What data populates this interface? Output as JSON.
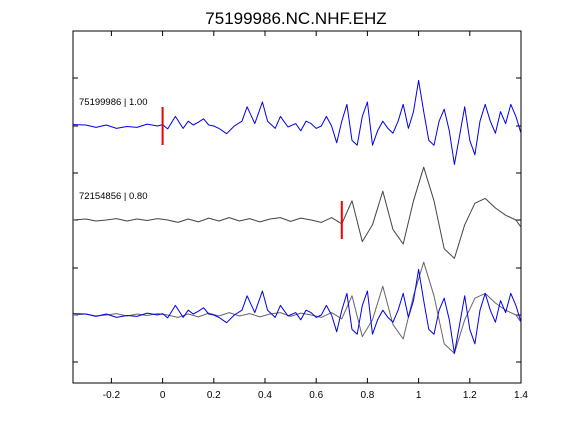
{
  "chart_data": {
    "type": "line",
    "title": "75199986.NC.NHF.EHZ",
    "xlabel": "",
    "ylabel": "",
    "xlim": [
      -0.35,
      1.4
    ],
    "xticks": [
      -0.2,
      0,
      0.2,
      0.4,
      0.6,
      0.8,
      1,
      1.2,
      1.4
    ],
    "xtick_labels": [
      "-0.2",
      "0",
      "0.2",
      "0.4",
      "0.6",
      "0.8",
      "1",
      "1.2",
      "1.4"
    ],
    "grid": false,
    "trace_offsets": [
      2,
      1,
      0
    ],
    "traces": [
      {
        "label": "75199986 | 1.00",
        "offset": 2,
        "color": "#0000ee",
        "pick_time": 0.0,
        "x": [
          -0.35,
          -0.3,
          -0.26,
          -0.22,
          -0.18,
          -0.14,
          -0.1,
          -0.06,
          -0.02,
          0.0,
          0.02,
          0.05,
          0.08,
          0.1,
          0.12,
          0.14,
          0.16,
          0.18,
          0.2,
          0.22,
          0.25,
          0.28,
          0.31,
          0.33,
          0.36,
          0.39,
          0.41,
          0.44,
          0.46,
          0.49,
          0.52,
          0.54,
          0.56,
          0.58,
          0.6,
          0.62,
          0.64,
          0.66,
          0.68,
          0.7,
          0.72,
          0.74,
          0.76,
          0.78,
          0.8,
          0.82,
          0.84,
          0.86,
          0.88,
          0.9,
          0.92,
          0.94,
          0.96,
          0.98,
          1.0,
          1.02,
          1.04,
          1.06,
          1.08,
          1.1,
          1.12,
          1.14,
          1.16,
          1.18,
          1.2,
          1.22,
          1.24,
          1.26,
          1.28,
          1.3,
          1.32,
          1.34,
          1.36,
          1.38,
          1.4
        ],
        "y": [
          0.03,
          0.02,
          -0.03,
          0.02,
          -0.05,
          -0.01,
          -0.03,
          0.04,
          0.0,
          0.03,
          -0.06,
          0.2,
          -0.05,
          0.1,
          0.02,
          0.08,
          0.15,
          0.02,
          0.0,
          -0.05,
          -0.16,
          0.0,
          0.1,
          0.4,
          0.05,
          0.5,
          0.1,
          -0.05,
          0.2,
          -0.02,
          0.05,
          -0.1,
          0.1,
          0.05,
          -0.05,
          0.0,
          0.2,
          0.0,
          -0.35,
          0.1,
          0.45,
          -0.3,
          -0.4,
          0.2,
          0.5,
          -0.4,
          -0.1,
          0.1,
          -0.05,
          -0.15,
          0.1,
          0.45,
          -0.05,
          0.3,
          0.95,
          0.3,
          -0.3,
          -0.4,
          0.1,
          0.35,
          -0.1,
          -0.8,
          -0.2,
          0.4,
          -0.3,
          -0.6,
          0.1,
          0.45,
          0.1,
          -0.15,
          0.3,
          0.05,
          0.45,
          0.2,
          -0.15
        ]
      },
      {
        "label": "72154856 | 0.80",
        "offset": 1,
        "color": "#444444",
        "pick_time": 0.7,
        "x": [
          -0.35,
          -0.3,
          -0.26,
          -0.22,
          -0.18,
          -0.14,
          -0.1,
          -0.06,
          -0.02,
          0.02,
          0.06,
          0.1,
          0.14,
          0.18,
          0.22,
          0.26,
          0.3,
          0.34,
          0.38,
          0.42,
          0.46,
          0.5,
          0.54,
          0.58,
          0.62,
          0.66,
          0.7,
          0.74,
          0.78,
          0.82,
          0.86,
          0.9,
          0.94,
          0.98,
          1.02,
          1.06,
          1.1,
          1.14,
          1.18,
          1.22,
          1.26,
          1.3,
          1.34,
          1.38,
          1.4
        ],
        "y": [
          0.0,
          0.02,
          -0.02,
          0.0,
          0.03,
          -0.02,
          0.02,
          -0.01,
          0.03,
          0.0,
          -0.05,
          0.02,
          -0.04,
          0.04,
          -0.02,
          0.05,
          -0.02,
          0.03,
          -0.04,
          0.02,
          0.05,
          -0.03,
          0.04,
          0.0,
          -0.05,
          0.05,
          -0.08,
          0.4,
          -0.45,
          -0.1,
          0.6,
          -0.2,
          -0.5,
          0.4,
          1.1,
          0.4,
          -0.6,
          -0.8,
          -0.1,
          0.35,
          0.45,
          0.25,
          0.1,
          0.0,
          -0.15
        ]
      },
      {
        "label": "",
        "offset": 0,
        "color": "#0000ee",
        "pick_time": null,
        "x": [
          -0.35,
          -0.3,
          -0.26,
          -0.22,
          -0.18,
          -0.14,
          -0.1,
          -0.06,
          -0.02,
          0.0,
          0.02,
          0.05,
          0.08,
          0.1,
          0.12,
          0.14,
          0.16,
          0.18,
          0.2,
          0.22,
          0.25,
          0.28,
          0.31,
          0.33,
          0.36,
          0.39,
          0.41,
          0.44,
          0.46,
          0.49,
          0.52,
          0.54,
          0.56,
          0.58,
          0.6,
          0.62,
          0.64,
          0.66,
          0.68,
          0.7,
          0.72,
          0.74,
          0.76,
          0.78,
          0.8,
          0.82,
          0.84,
          0.86,
          0.88,
          0.9,
          0.92,
          0.94,
          0.96,
          0.98,
          1.0,
          1.02,
          1.04,
          1.06,
          1.08,
          1.1,
          1.12,
          1.14,
          1.16,
          1.18,
          1.2,
          1.22,
          1.24,
          1.26,
          1.28,
          1.3,
          1.32,
          1.34,
          1.36,
          1.38,
          1.4
        ],
        "y": [
          0.03,
          0.02,
          -0.03,
          0.02,
          -0.05,
          -0.01,
          -0.03,
          0.04,
          0.0,
          0.03,
          -0.06,
          0.2,
          -0.05,
          0.1,
          0.02,
          0.08,
          0.15,
          0.02,
          0.0,
          -0.05,
          -0.16,
          0.0,
          0.1,
          0.4,
          0.05,
          0.5,
          0.1,
          -0.05,
          0.2,
          -0.02,
          0.05,
          -0.1,
          0.1,
          0.05,
          -0.05,
          0.0,
          0.2,
          0.0,
          -0.35,
          0.1,
          0.45,
          -0.3,
          -0.4,
          0.2,
          0.5,
          -0.4,
          -0.1,
          0.1,
          -0.05,
          -0.15,
          0.1,
          0.45,
          -0.05,
          0.3,
          0.95,
          0.3,
          -0.3,
          -0.4,
          0.1,
          0.35,
          -0.1,
          -0.8,
          -0.2,
          0.4,
          -0.3,
          -0.6,
          0.1,
          0.45,
          0.1,
          -0.15,
          0.3,
          0.05,
          0.45,
          0.2,
          -0.15
        ]
      },
      {
        "label": "",
        "offset": 0,
        "color": "#666666",
        "pick_time": null,
        "x": [
          -0.35,
          -0.3,
          -0.26,
          -0.22,
          -0.18,
          -0.14,
          -0.1,
          -0.06,
          -0.02,
          0.02,
          0.06,
          0.1,
          0.14,
          0.18,
          0.22,
          0.26,
          0.3,
          0.34,
          0.38,
          0.42,
          0.46,
          0.5,
          0.54,
          0.58,
          0.62,
          0.66,
          0.7,
          0.74,
          0.78,
          0.82,
          0.86,
          0.9,
          0.94,
          0.98,
          1.02,
          1.06,
          1.1,
          1.14,
          1.18,
          1.22,
          1.26,
          1.3,
          1.34,
          1.38,
          1.4
        ],
        "y": [
          0.0,
          0.02,
          -0.02,
          0.0,
          0.03,
          -0.02,
          0.02,
          -0.01,
          0.03,
          0.0,
          -0.05,
          0.02,
          -0.04,
          0.04,
          -0.02,
          0.05,
          -0.02,
          0.03,
          -0.04,
          0.02,
          0.05,
          -0.03,
          0.04,
          0.0,
          -0.05,
          0.05,
          -0.08,
          0.4,
          -0.45,
          -0.1,
          0.6,
          -0.2,
          -0.5,
          0.4,
          1.1,
          0.4,
          -0.6,
          -0.8,
          -0.1,
          0.35,
          0.45,
          0.25,
          0.1,
          0.0,
          -0.15
        ]
      }
    ],
    "colors": {
      "pick": "#ee0000",
      "axes": "#000000"
    }
  }
}
